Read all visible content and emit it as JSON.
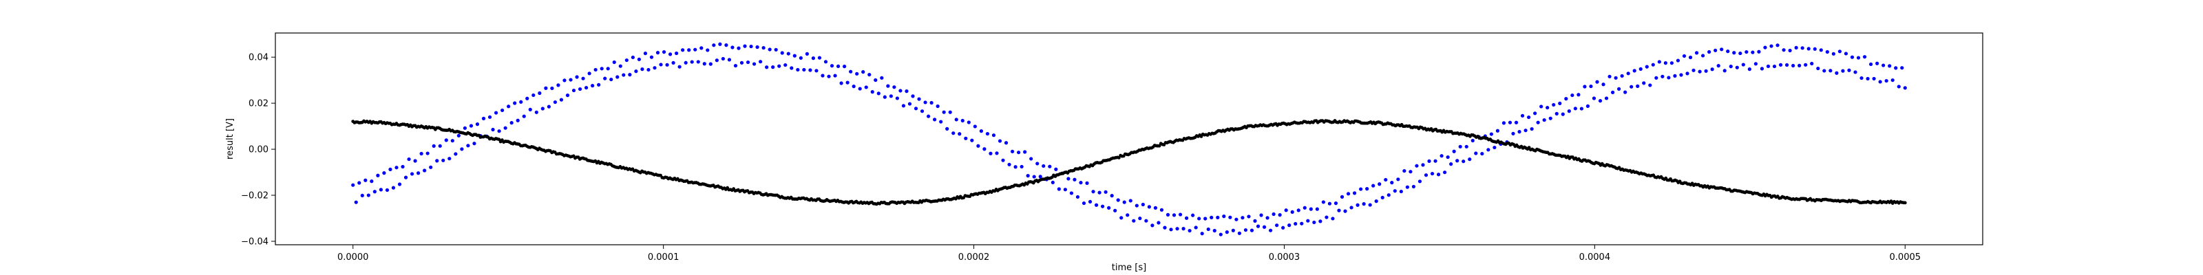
{
  "chart_data": {
    "type": "scatter",
    "title": "",
    "xlabel": "time [s]",
    "ylabel": "result [V]",
    "xlim": [
      -2.5e-05,
      0.000525
    ],
    "ylim": [
      -0.0415,
      0.0505
    ],
    "xticks": [
      0.0,
      0.0001,
      0.0002,
      0.0003,
      0.0004,
      0.0005
    ],
    "xtick_labels": [
      "0.0000",
      "0.0001",
      "0.0002",
      "0.0003",
      "0.0004",
      "0.0005"
    ],
    "yticks": [
      -0.04,
      -0.02,
      0.0,
      0.02,
      0.04
    ],
    "ytick_labels": [
      "−0.04",
      "−0.02",
      "0.00",
      "0.02",
      "0.04"
    ],
    "grid": false,
    "legend": "none",
    "series": [
      {
        "color": "#0000ff",
        "marker": "dot",
        "description_points": "two parallel bands, sinusoidal, period about 0.00035 s",
        "x": [
          0.0,
          1e-05,
          2e-05,
          3e-05,
          4e-05,
          5e-05,
          6e-05,
          7e-05,
          8e-05,
          9e-05,
          0.0001,
          0.00011,
          0.00012,
          0.00013,
          0.00014,
          0.00015,
          0.00016,
          0.00017,
          0.00018,
          0.00019,
          0.0002,
          0.00021,
          0.00022,
          0.00023,
          0.00024,
          0.00025,
          0.00026,
          0.00027,
          0.00028,
          0.00029,
          0.0003,
          0.00031,
          0.00032,
          0.00033,
          0.00034,
          0.00035,
          0.00036,
          0.00037,
          0.00038,
          0.00039,
          0.0004,
          0.00041,
          0.00042,
          0.00043,
          0.00044,
          0.00045,
          0.00046,
          0.00047,
          0.00048,
          0.00049,
          0.0005
        ],
        "y_upper": [
          -0.016,
          -0.011,
          -0.004,
          0.003,
          0.011,
          0.018,
          0.025,
          0.03,
          0.035,
          0.039,
          0.042,
          0.044,
          0.045,
          0.044,
          0.042,
          0.039,
          0.035,
          0.03,
          0.024,
          0.017,
          0.01,
          0.002,
          -0.005,
          -0.012,
          -0.018,
          -0.023,
          -0.027,
          -0.029,
          -0.03,
          -0.03,
          -0.028,
          -0.025,
          -0.021,
          -0.016,
          -0.01,
          -0.004,
          0.003,
          0.01,
          0.016,
          0.022,
          0.028,
          0.033,
          0.037,
          0.04,
          0.042,
          0.043,
          0.044,
          0.043,
          0.041,
          0.038,
          0.034
        ],
        "y_lower": [
          -0.023,
          -0.018,
          -0.011,
          -0.004,
          0.004,
          0.011,
          0.018,
          0.024,
          0.029,
          0.033,
          0.036,
          0.037,
          0.038,
          0.037,
          0.036,
          0.033,
          0.029,
          0.024,
          0.018,
          0.011,
          0.003,
          -0.005,
          -0.012,
          -0.019,
          -0.025,
          -0.03,
          -0.033,
          -0.035,
          -0.036,
          -0.035,
          -0.034,
          -0.031,
          -0.027,
          -0.022,
          -0.016,
          -0.01,
          -0.003,
          0.003,
          0.01,
          0.016,
          0.021,
          0.026,
          0.03,
          0.033,
          0.035,
          0.036,
          0.037,
          0.036,
          0.034,
          0.031,
          0.028
        ]
      },
      {
        "color": "#000000",
        "marker": "dot",
        "description_points": "single dense band, sinusoidal, opposite phase",
        "x": [
          0.0,
          1e-05,
          2e-05,
          3e-05,
          4e-05,
          5e-05,
          6e-05,
          7e-05,
          8e-05,
          9e-05,
          0.0001,
          0.00011,
          0.00012,
          0.00013,
          0.00014,
          0.00015,
          0.00016,
          0.00017,
          0.00018,
          0.00019,
          0.0002,
          0.00021,
          0.00022,
          0.00023,
          0.00024,
          0.00025,
          0.00026,
          0.00027,
          0.00028,
          0.00029,
          0.0003,
          0.00031,
          0.00032,
          0.00033,
          0.00034,
          0.00035,
          0.00036,
          0.00037,
          0.00038,
          0.00039,
          0.0004,
          0.00041,
          0.00042,
          0.00043,
          0.00044,
          0.00045,
          0.00046,
          0.00047,
          0.00048,
          0.00049,
          0.0005
        ],
        "y": [
          0.012,
          0.0115,
          0.01,
          0.0085,
          0.006,
          0.003,
          0.0,
          -0.003,
          -0.006,
          -0.009,
          -0.012,
          -0.0145,
          -0.017,
          -0.019,
          -0.021,
          -0.022,
          -0.023,
          -0.0235,
          -0.023,
          -0.022,
          -0.02,
          -0.017,
          -0.014,
          -0.01,
          -0.006,
          -0.002,
          0.002,
          0.005,
          0.008,
          0.01,
          0.011,
          0.012,
          0.012,
          0.0115,
          0.01,
          0.008,
          0.006,
          0.003,
          0.0,
          -0.003,
          -0.006,
          -0.009,
          -0.012,
          -0.015,
          -0.017,
          -0.019,
          -0.021,
          -0.022,
          -0.0225,
          -0.023,
          -0.023
        ]
      }
    ]
  }
}
